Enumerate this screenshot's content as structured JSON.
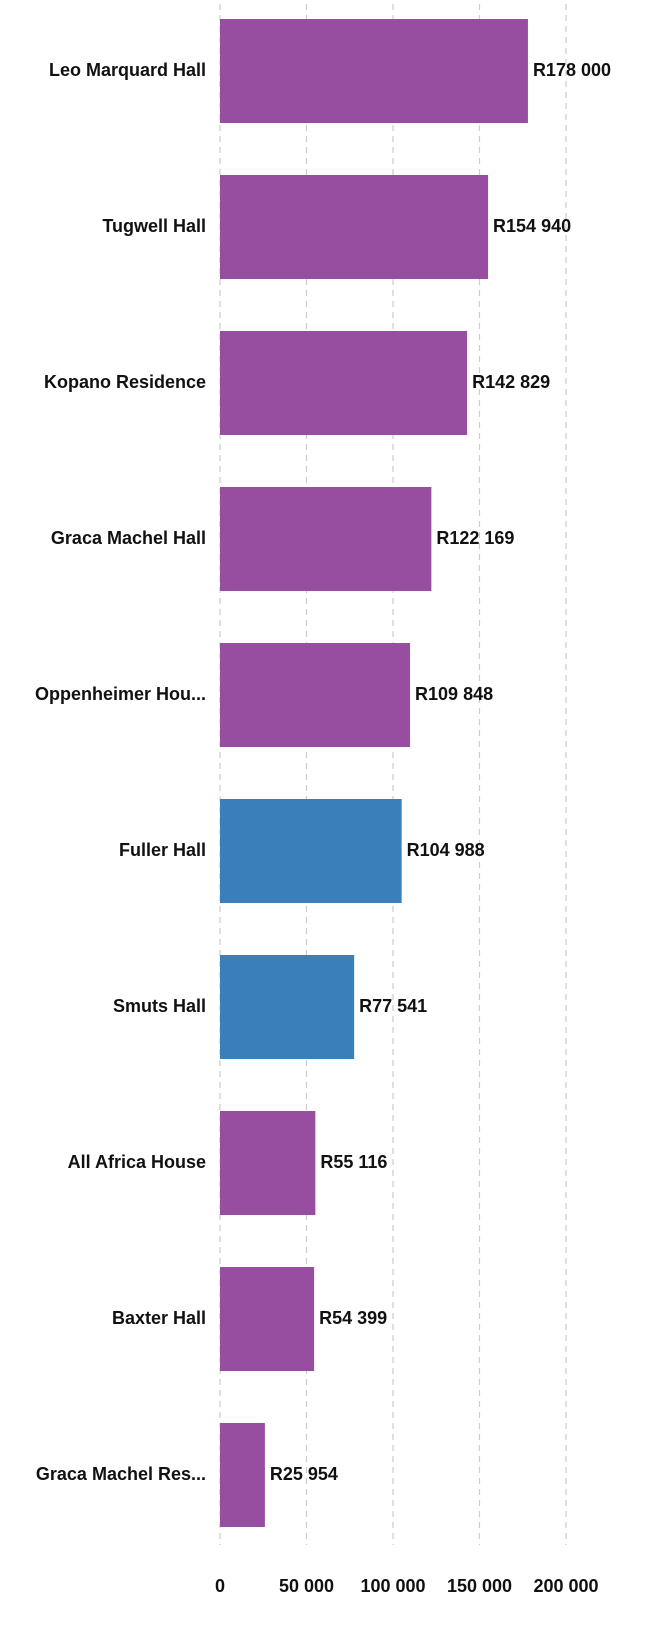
{
  "chart_data": {
    "type": "barh",
    "categories": [
      "Leo Marquard Hall",
      "Tugwell Hall",
      "Kopano Residence",
      "Graca Machel Hall",
      "Oppenheimer Hou...",
      "Fuller Hall",
      "Smuts Hall",
      "All Africa House",
      "Baxter Hall",
      "Graca Machel Res..."
    ],
    "values": [
      178000,
      154940,
      142829,
      122169,
      109848,
      104988,
      77541,
      55116,
      54399,
      25954
    ],
    "value_labels": [
      "R178 000",
      "R154 940",
      "R142 829",
      "R122 169",
      "R109 848",
      "R104 988",
      "R77 541",
      "R55 116",
      "R54 399",
      "R25 954"
    ],
    "colors": [
      "#974ea1",
      "#974ea1",
      "#974ea1",
      "#974ea1",
      "#974ea1",
      "#3a7fba",
      "#3a7fba",
      "#974ea1",
      "#974ea1",
      "#974ea1"
    ],
    "xlim": [
      0,
      200000
    ],
    "xticks": [
      0,
      {
        "value": 50000,
        "label": "50 000"
      },
      {
        "value": 100000,
        "label": "100 000"
      },
      {
        "value": 150000,
        "label": "150 000"
      },
      {
        "value": 200000,
        "label": "200 000"
      }
    ],
    "grid": true
  }
}
